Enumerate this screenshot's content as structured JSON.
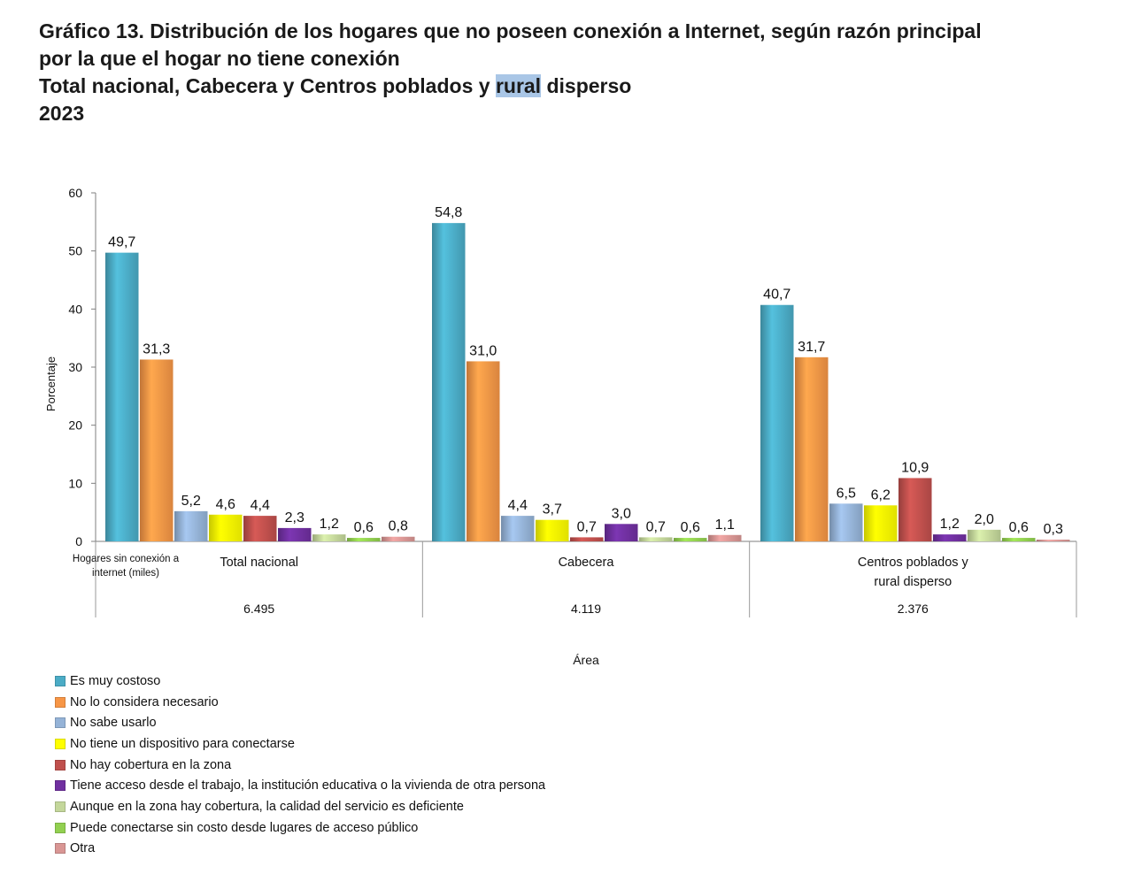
{
  "title": {
    "line1": "Gráfico 13. Distribución de los hogares que no poseen conexión a Internet, según razón principal",
    "line2": "por la que el hogar no tiene conexión",
    "line3_pre": "Total nacional, Cabecera y Centros poblados y ",
    "line3_hl": "rural",
    "line3_post": " disperso",
    "line4": "2023"
  },
  "chart_data": {
    "type": "bar",
    "title": "Distribución de los hogares que no poseen conexión a Internet, según razón principal por la que el hogar no tiene conexión",
    "ylabel": "Porcentaje",
    "xlabel": "Área",
    "ylim": [
      0,
      60
    ],
    "yticks": [
      0,
      10,
      20,
      30,
      40,
      50,
      60
    ],
    "categories": [
      "Total nacional",
      "Cabecera",
      "Centros poblados y rural disperso"
    ],
    "category_lines": [
      [
        "Total nacional"
      ],
      [
        "Cabecera"
      ],
      [
        "Centros poblados y",
        "rural disperso"
      ]
    ],
    "table_row_label_lines": [
      "Hogares sin conexión a",
      "internet (miles)"
    ],
    "table_values": [
      "6.495",
      "4.119",
      "2.376"
    ],
    "series": [
      {
        "name": "Es muy costoso",
        "color": "#4bacc6",
        "values": [
          49.7,
          54.8,
          40.7
        ],
        "labels": [
          "49,7",
          "54,8",
          "40,7"
        ]
      },
      {
        "name": "No lo considera necesario",
        "color": "#f79646",
        "values": [
          31.3,
          31.0,
          31.7
        ],
        "labels": [
          "31,3",
          "31,0",
          "31,7"
        ]
      },
      {
        "name": "No sabe usarlo",
        "color": "#95b3d7",
        "values": [
          5.2,
          4.4,
          6.5
        ],
        "labels": [
          "5,2",
          "4,4",
          "6,5"
        ]
      },
      {
        "name": "No tiene un dispositivo para conectarse",
        "color": "#ffff00",
        "values": [
          4.6,
          3.7,
          6.2
        ],
        "labels": [
          "4,6",
          "3,7",
          "6,2"
        ]
      },
      {
        "name": "No hay cobertura en la zona",
        "color": "#c0504d",
        "values": [
          4.4,
          0.7,
          10.9
        ],
        "labels": [
          "4,4",
          "0,7",
          "10,9"
        ]
      },
      {
        "name": "Tiene acceso desde el trabajo, la institución educativa o la vivienda de otra persona",
        "color": "#7030a0",
        "values": [
          2.3,
          3.0,
          1.2
        ],
        "labels": [
          "2,3",
          "3,0",
          "1,2"
        ]
      },
      {
        "name": "Aunque en la zona hay cobertura, la calidad del servicio es deficiente",
        "color": "#c4d79b",
        "values": [
          1.2,
          0.7,
          2.0
        ],
        "labels": [
          "1,2",
          "0,7",
          "2,0"
        ]
      },
      {
        "name": "Puede conectarse sin costo desde lugares de acceso público",
        "color": "#92d050",
        "values": [
          0.6,
          0.6,
          0.6
        ],
        "labels": [
          "0,6",
          "0,6",
          "0,6"
        ]
      },
      {
        "name": "Otra",
        "color": "#d99694",
        "values": [
          0.8,
          1.1,
          0.3
        ],
        "labels": [
          "0,8",
          "1,1",
          "0,3"
        ]
      }
    ]
  }
}
